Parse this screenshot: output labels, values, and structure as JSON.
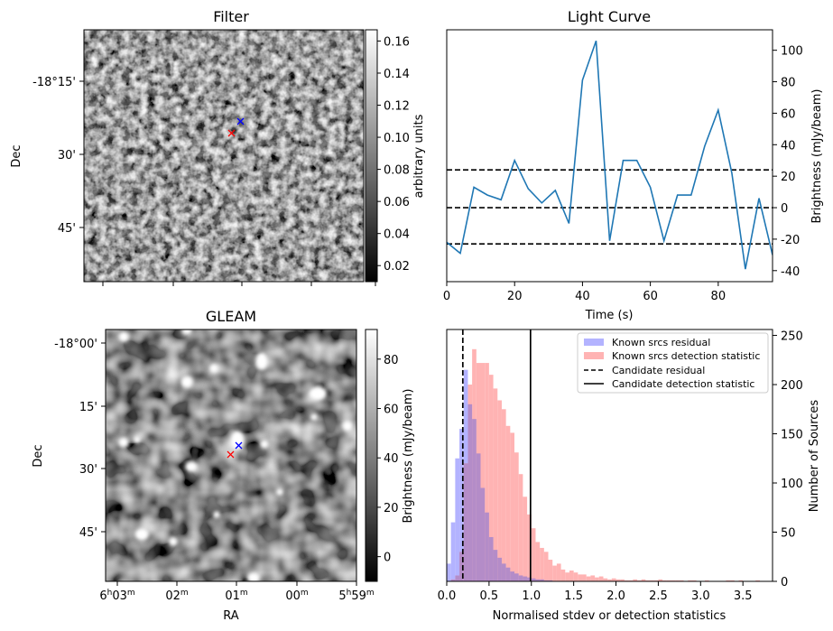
{
  "colors": {
    "line": "#1f77b4",
    "known_residual": "#b3b3ff",
    "known_detection": "#ffb3b3",
    "overlap": "#b48cc8",
    "marker_candidate": "#ff0000",
    "marker_known": "#0000ff"
  },
  "filter_panel": {
    "title": "Filter",
    "ylabel": "Dec",
    "yticks": [
      "-18°15'",
      "30'",
      "45'"
    ],
    "colorbar": {
      "label": "arbitrary units",
      "ticks": [
        "0.16",
        "0.14",
        "0.12",
        "0.10",
        "0.08",
        "0.06",
        "0.04",
        "0.02"
      ],
      "range": [
        0.01,
        0.167
      ]
    },
    "markers": [
      {
        "symbol": "x",
        "color": "red",
        "meaning": "candidate"
      },
      {
        "symbol": "x",
        "color": "blue",
        "meaning": "known source"
      }
    ]
  },
  "gleam_panel": {
    "title": "GLEAM",
    "xlabel": "RA",
    "ylabel": "Dec",
    "xticks": [
      {
        "main": "6",
        "sup": "h",
        "main2": "03",
        "sup2": "m"
      },
      {
        "main": "02",
        "sup": "m"
      },
      {
        "main": "01",
        "sup": "m"
      },
      {
        "main": "00",
        "sup": "m"
      },
      {
        "main": "5",
        "sup": "h",
        "main2": "59",
        "sup2": "m"
      }
    ],
    "yticks": [
      "-18°00'",
      "15'",
      "30'",
      "45'"
    ],
    "colorbar": {
      "label": "Brightness (mJy/beam)",
      "ticks": [
        "80",
        "60",
        "40",
        "20",
        "0"
      ],
      "range": [
        -10,
        92
      ]
    }
  },
  "chart_data": [
    {
      "type": "line",
      "title": "Light Curve",
      "xlabel": "Time (s)",
      "ylabel": "Brightness (mJy/beam)",
      "xlim": [
        0,
        96
      ],
      "ylim": [
        -47,
        113
      ],
      "xticks": [
        "0",
        "20",
        "40",
        "60",
        "80"
      ],
      "yticks": [
        "100",
        "80",
        "60",
        "40",
        "20",
        "0",
        "-20",
        "-40"
      ],
      "series": [
        {
          "name": "light curve",
          "x": [
            0,
            4,
            8,
            12,
            16,
            20,
            24,
            28,
            32,
            36,
            40,
            44,
            48,
            52,
            56,
            60,
            64,
            68,
            72,
            76,
            80,
            84,
            88,
            92,
            96
          ],
          "y": [
            -22,
            -29,
            13,
            8,
            5,
            30,
            12,
            3,
            11,
            -10,
            81,
            106,
            -21,
            30,
            30,
            13,
            -21,
            8,
            8,
            39,
            62,
            22,
            -39,
            6,
            -30
          ]
        }
      ],
      "hlines": [
        {
          "y": 24,
          "style": "dashed"
        },
        {
          "y": 0,
          "style": "dashed"
        },
        {
          "y": -23,
          "style": "dashed"
        }
      ]
    },
    {
      "type": "histogram",
      "xlabel": "Normalised stdev or detection statistics",
      "ylabel": "Number of Sources",
      "xlim": [
        0,
        3.85
      ],
      "ylim": [
        0,
        256
      ],
      "xticks": [
        "0.0",
        "0.5",
        "1.0",
        "1.5",
        "2.0",
        "2.5",
        "3.0",
        "3.5"
      ],
      "yticks": [
        "250",
        "200",
        "150",
        "100",
        "50",
        "0"
      ],
      "bin_width": 0.05,
      "series": [
        {
          "name": "Known srcs residual",
          "bin_start": 0.0,
          "counts": [
            18,
            60,
            125,
            155,
            215,
            180,
            165,
            130,
            95,
            70,
            45,
            32,
            24,
            18,
            14,
            10,
            8,
            6,
            5,
            4,
            3,
            2,
            2,
            1,
            1
          ]
        },
        {
          "name": "Known srcs detection statistic",
          "bin_start": 0.0,
          "counts": [
            0,
            2,
            6,
            30,
            120,
            200,
            236,
            222,
            222,
            222,
            210,
            196,
            184,
            175,
            158,
            151,
            131,
            109,
            86,
            68,
            54,
            40,
            34,
            30,
            22,
            16,
            18,
            12,
            9,
            11,
            9,
            7,
            7,
            5,
            6,
            4,
            5,
            3,
            2,
            3,
            2,
            2,
            1,
            1,
            2,
            1,
            2,
            1,
            1,
            1,
            2,
            1,
            1,
            1,
            1,
            1,
            0,
            1,
            1,
            0,
            0,
            1,
            0,
            0,
            0,
            0,
            1,
            1,
            0,
            1,
            0,
            0,
            0,
            1
          ]
        }
      ],
      "vlines": [
        {
          "name": "Candidate residual",
          "x": 0.19,
          "style": "dashed"
        },
        {
          "name": "Candidate detection statistic",
          "x": 0.99,
          "style": "solid"
        }
      ],
      "legend": {
        "position": "top-right",
        "entries": [
          "Known srcs residual",
          "Known srcs detection statistic",
          "Candidate residual",
          "Candidate detection statistic"
        ]
      }
    }
  ]
}
